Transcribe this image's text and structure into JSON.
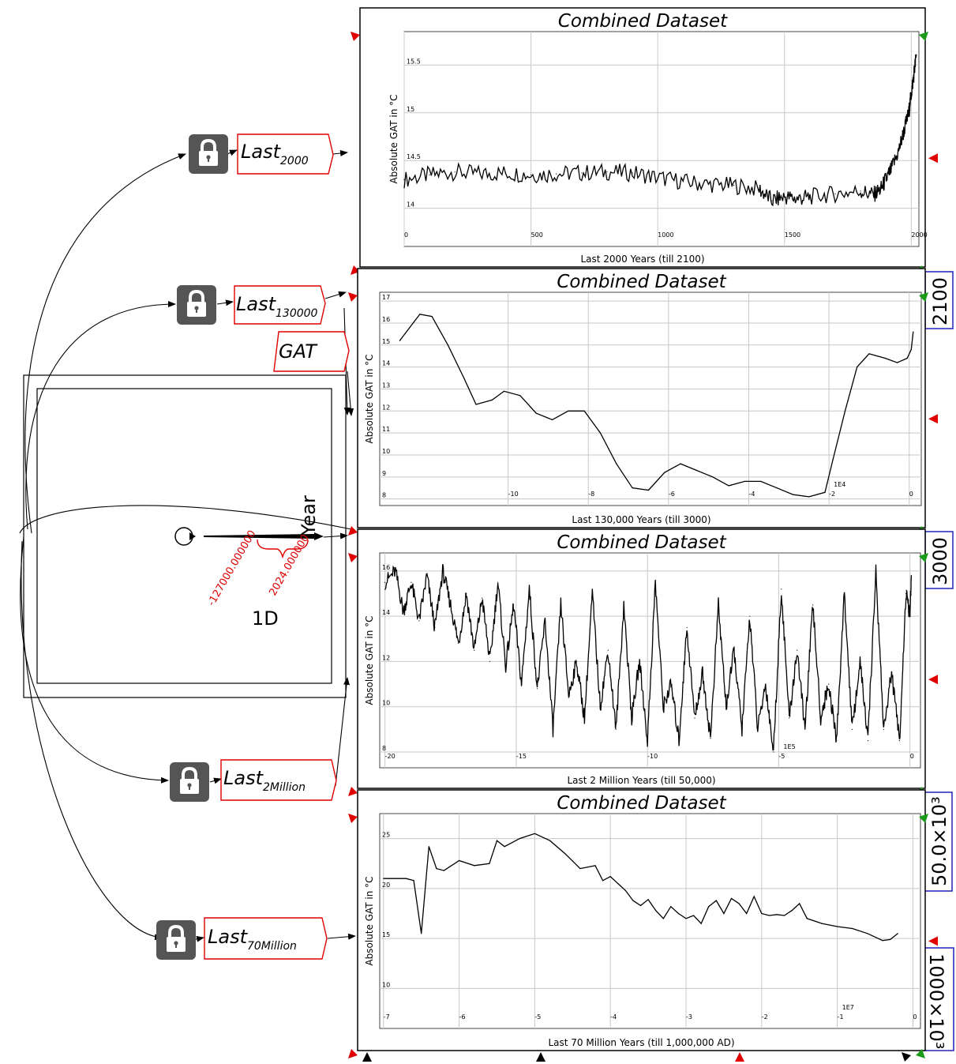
{
  "colors": {
    "accent_red": "#e00000",
    "box_blue": "#2222bb",
    "arrow_green": "#1a9c1a"
  },
  "tags": [
    {
      "main": "Last",
      "sub": "2000"
    },
    {
      "main": "Last",
      "sub": "130000"
    },
    {
      "main": "Last",
      "sub": "2Million"
    },
    {
      "main": "Last",
      "sub": "70Million"
    }
  ],
  "gat_tag": "GAT",
  "axis_widget": {
    "label": "Year",
    "value_a": "-127000.000000",
    "value_b": "2024.000000",
    "dim": "1D"
  },
  "side_boxes": [
    "2100",
    "3000",
    "50.0×10³",
    "1000×10³"
  ],
  "chart_data": [
    {
      "type": "line",
      "title": "Combined Dataset",
      "xlabel": "Last 2000 Years (till 2100)",
      "ylabel": "Absolute GAT in °C",
      "xlim": [
        0,
        2030
      ],
      "ylim": [
        13.6,
        15.85
      ],
      "xticks": [
        "0",
        "500",
        "1000",
        "1500",
        "2000"
      ],
      "xtick_vals": [
        0,
        500,
        1000,
        1500,
        2000
      ],
      "yticks": [
        "14",
        "14.5",
        "15",
        "15.5"
      ],
      "ytick_vals": [
        14,
        14.5,
        15,
        15.5
      ],
      "multiplier": "",
      "noise": 0.09,
      "x": [
        0,
        100,
        200,
        300,
        400,
        500,
        600,
        700,
        800,
        900,
        1000,
        1100,
        1200,
        1300,
        1400,
        1450,
        1500,
        1550,
        1600,
        1700,
        1800,
        1850,
        1880,
        1900,
        1920,
        1950,
        1970,
        1990,
        2000,
        2010,
        2020
      ],
      "y": [
        14.3,
        14.35,
        14.38,
        14.36,
        14.37,
        14.35,
        14.36,
        14.37,
        14.38,
        14.37,
        14.32,
        14.28,
        14.25,
        14.24,
        14.2,
        14.08,
        14.12,
        14.1,
        14.12,
        14.15,
        14.18,
        14.14,
        14.2,
        14.3,
        14.4,
        14.6,
        14.8,
        15.0,
        15.2,
        15.4,
        15.6
      ]
    },
    {
      "type": "line",
      "title": "Combined Dataset",
      "xlabel": "Last 130,000 Years (till 3000)",
      "ylabel": "Absolute GAT in °C",
      "xlim": [
        -13.2,
        0.3
      ],
      "ylim": [
        7.7,
        17.4
      ],
      "xticks": [
        "-10",
        "-8",
        "-6",
        "-4",
        "-2",
        "0"
      ],
      "xtick_vals": [
        -10,
        -8,
        -6,
        -4,
        -2,
        0
      ],
      "yticks": [
        "8",
        "9",
        "10",
        "11",
        "12",
        "13",
        "14",
        "15",
        "16",
        "17"
      ],
      "ytick_vals": [
        8,
        9,
        10,
        11,
        12,
        13,
        14,
        15,
        16,
        17
      ],
      "multiplier": "1E4",
      "noise": 0,
      "x": [
        -12.7,
        -12.2,
        -11.9,
        -11.5,
        -11.1,
        -10.8,
        -10.4,
        -10.1,
        -9.7,
        -9.3,
        -8.9,
        -8.5,
        -8.1,
        -7.7,
        -7.3,
        -6.9,
        -6.5,
        -6.1,
        -5.7,
        -5.3,
        -4.9,
        -4.5,
        -4.1,
        -3.7,
        -3.3,
        -2.9,
        -2.5,
        -2.1,
        -1.9,
        -1.6,
        -1.3,
        -1.0,
        -0.6,
        -0.3,
        -0.05,
        0.05,
        0.1
      ],
      "y": [
        15.2,
        16.4,
        16.3,
        15.0,
        13.5,
        12.3,
        12.5,
        12.9,
        12.7,
        11.9,
        11.6,
        12.0,
        12.0,
        11.0,
        9.6,
        8.5,
        8.4,
        9.2,
        9.6,
        9.3,
        9.0,
        8.6,
        8.8,
        8.8,
        8.5,
        8.2,
        8.1,
        8.3,
        9.8,
        12.0,
        14.0,
        14.6,
        14.4,
        14.2,
        14.4,
        14.8,
        15.6
      ]
    },
    {
      "type": "line",
      "title": "Combined Dataset",
      "xlabel": "Last 2 Million Years (till 50,000)",
      "ylabel": "Absolute GAT in °C",
      "xlim": [
        -20.2,
        0.4
      ],
      "ylim": [
        7.3,
        16.8
      ],
      "xticks": [
        "-20",
        "-15",
        "-10",
        "-5",
        "0"
      ],
      "xtick_vals": [
        -20,
        -15,
        -10,
        -5,
        0
      ],
      "yticks": [
        "8",
        "10",
        "12",
        "14",
        "16"
      ],
      "ytick_vals": [
        8,
        10,
        12,
        14,
        16
      ],
      "multiplier": "1E5",
      "noise": 0.35,
      "x": [
        -20.0,
        -19.6,
        -19.3,
        -19.0,
        -18.7,
        -18.4,
        -18.1,
        -17.8,
        -17.5,
        -17.2,
        -16.9,
        -16.6,
        -16.3,
        -16.0,
        -15.7,
        -15.4,
        -15.1,
        -14.8,
        -14.5,
        -14.2,
        -13.9,
        -13.6,
        -13.3,
        -13.0,
        -12.7,
        -12.4,
        -12.1,
        -11.8,
        -11.5,
        -11.2,
        -10.9,
        -10.6,
        -10.3,
        -10.0,
        -9.7,
        -9.4,
        -9.1,
        -8.8,
        -8.5,
        -8.2,
        -7.9,
        -7.6,
        -7.3,
        -7.0,
        -6.7,
        -6.4,
        -6.1,
        -5.8,
        -5.5,
        -5.2,
        -4.9,
        -4.6,
        -4.3,
        -4.0,
        -3.7,
        -3.4,
        -3.1,
        -2.8,
        -2.5,
        -2.2,
        -1.9,
        -1.6,
        -1.3,
        -1.0,
        -0.7,
        -0.4,
        -0.15,
        0.0,
        0.05
      ],
      "y": [
        15.5,
        16.0,
        14.2,
        15.5,
        13.8,
        15.8,
        13.5,
        16.0,
        14.5,
        12.8,
        15.0,
        12.5,
        14.8,
        12.0,
        15.5,
        11.8,
        14.5,
        11.0,
        15.2,
        10.8,
        13.8,
        9.0,
        14.5,
        10.5,
        12.0,
        9.5,
        15.0,
        10.0,
        12.5,
        9.0,
        14.5,
        9.5,
        12.0,
        8.5,
        15.5,
        10.0,
        11.0,
        8.5,
        13.5,
        9.5,
        11.5,
        8.6,
        14.5,
        10.0,
        12.5,
        9.0,
        14.0,
        9.0,
        11.0,
        8.0,
        15.2,
        9.5,
        12.5,
        9.0,
        14.5,
        9.5,
        11.0,
        8.5,
        15.0,
        9.0,
        12.0,
        8.5,
        16.0,
        9.0,
        11.5,
        8.5,
        15.0,
        14.0,
        15.8
      ]
    },
    {
      "type": "line",
      "title": "Combined Dataset",
      "xlabel": "Last 70 Million Years (till 1,000,000 AD)",
      "ylabel": "Absolute GAT in °C",
      "xlim": [
        -7.05,
        0.1
      ],
      "ylim": [
        6.0,
        27.5
      ],
      "xticks": [
        "-7",
        "-6",
        "-5",
        "-4",
        "-3",
        "-2",
        "-1",
        "0"
      ],
      "xtick_vals": [
        -7,
        -6,
        -5,
        -4,
        -3,
        -2,
        -1,
        0
      ],
      "yticks": [
        "10",
        "15",
        "20",
        "25"
      ],
      "ytick_vals": [
        10,
        15,
        20,
        25
      ],
      "multiplier": "1E7",
      "noise": 0,
      "x": [
        -7.0,
        -6.7,
        -6.6,
        -6.5,
        -6.4,
        -6.3,
        -6.2,
        -6.0,
        -5.8,
        -5.6,
        -5.5,
        -5.4,
        -5.3,
        -5.2,
        -5.0,
        -4.8,
        -4.6,
        -4.4,
        -4.2,
        -4.1,
        -4.0,
        -3.9,
        -3.8,
        -3.7,
        -3.6,
        -3.5,
        -3.4,
        -3.3,
        -3.2,
        -3.1,
        -3.0,
        -2.9,
        -2.8,
        -2.7,
        -2.6,
        -2.5,
        -2.4,
        -2.3,
        -2.2,
        -2.1,
        -2.0,
        -1.9,
        -1.8,
        -1.7,
        -1.6,
        -1.5,
        -1.4,
        -1.2,
        -1.0,
        -0.8,
        -0.6,
        -0.4,
        -0.3,
        -0.2
      ],
      "y": [
        21.0,
        21.0,
        20.8,
        15.5,
        24.2,
        22.0,
        21.8,
        22.8,
        22.3,
        22.5,
        24.8,
        24.2,
        24.6,
        25.0,
        25.5,
        24.8,
        23.5,
        22.0,
        22.3,
        20.8,
        21.2,
        20.5,
        19.8,
        18.8,
        18.3,
        18.9,
        17.8,
        17.0,
        18.2,
        17.5,
        17.0,
        17.3,
        16.5,
        18.2,
        18.8,
        17.5,
        19.0,
        18.5,
        17.5,
        19.2,
        17.5,
        17.3,
        17.4,
        17.3,
        17.8,
        18.5,
        17.0,
        16.5,
        16.2,
        16.0,
        15.5,
        14.8,
        14.9,
        15.5
      ]
    }
  ]
}
